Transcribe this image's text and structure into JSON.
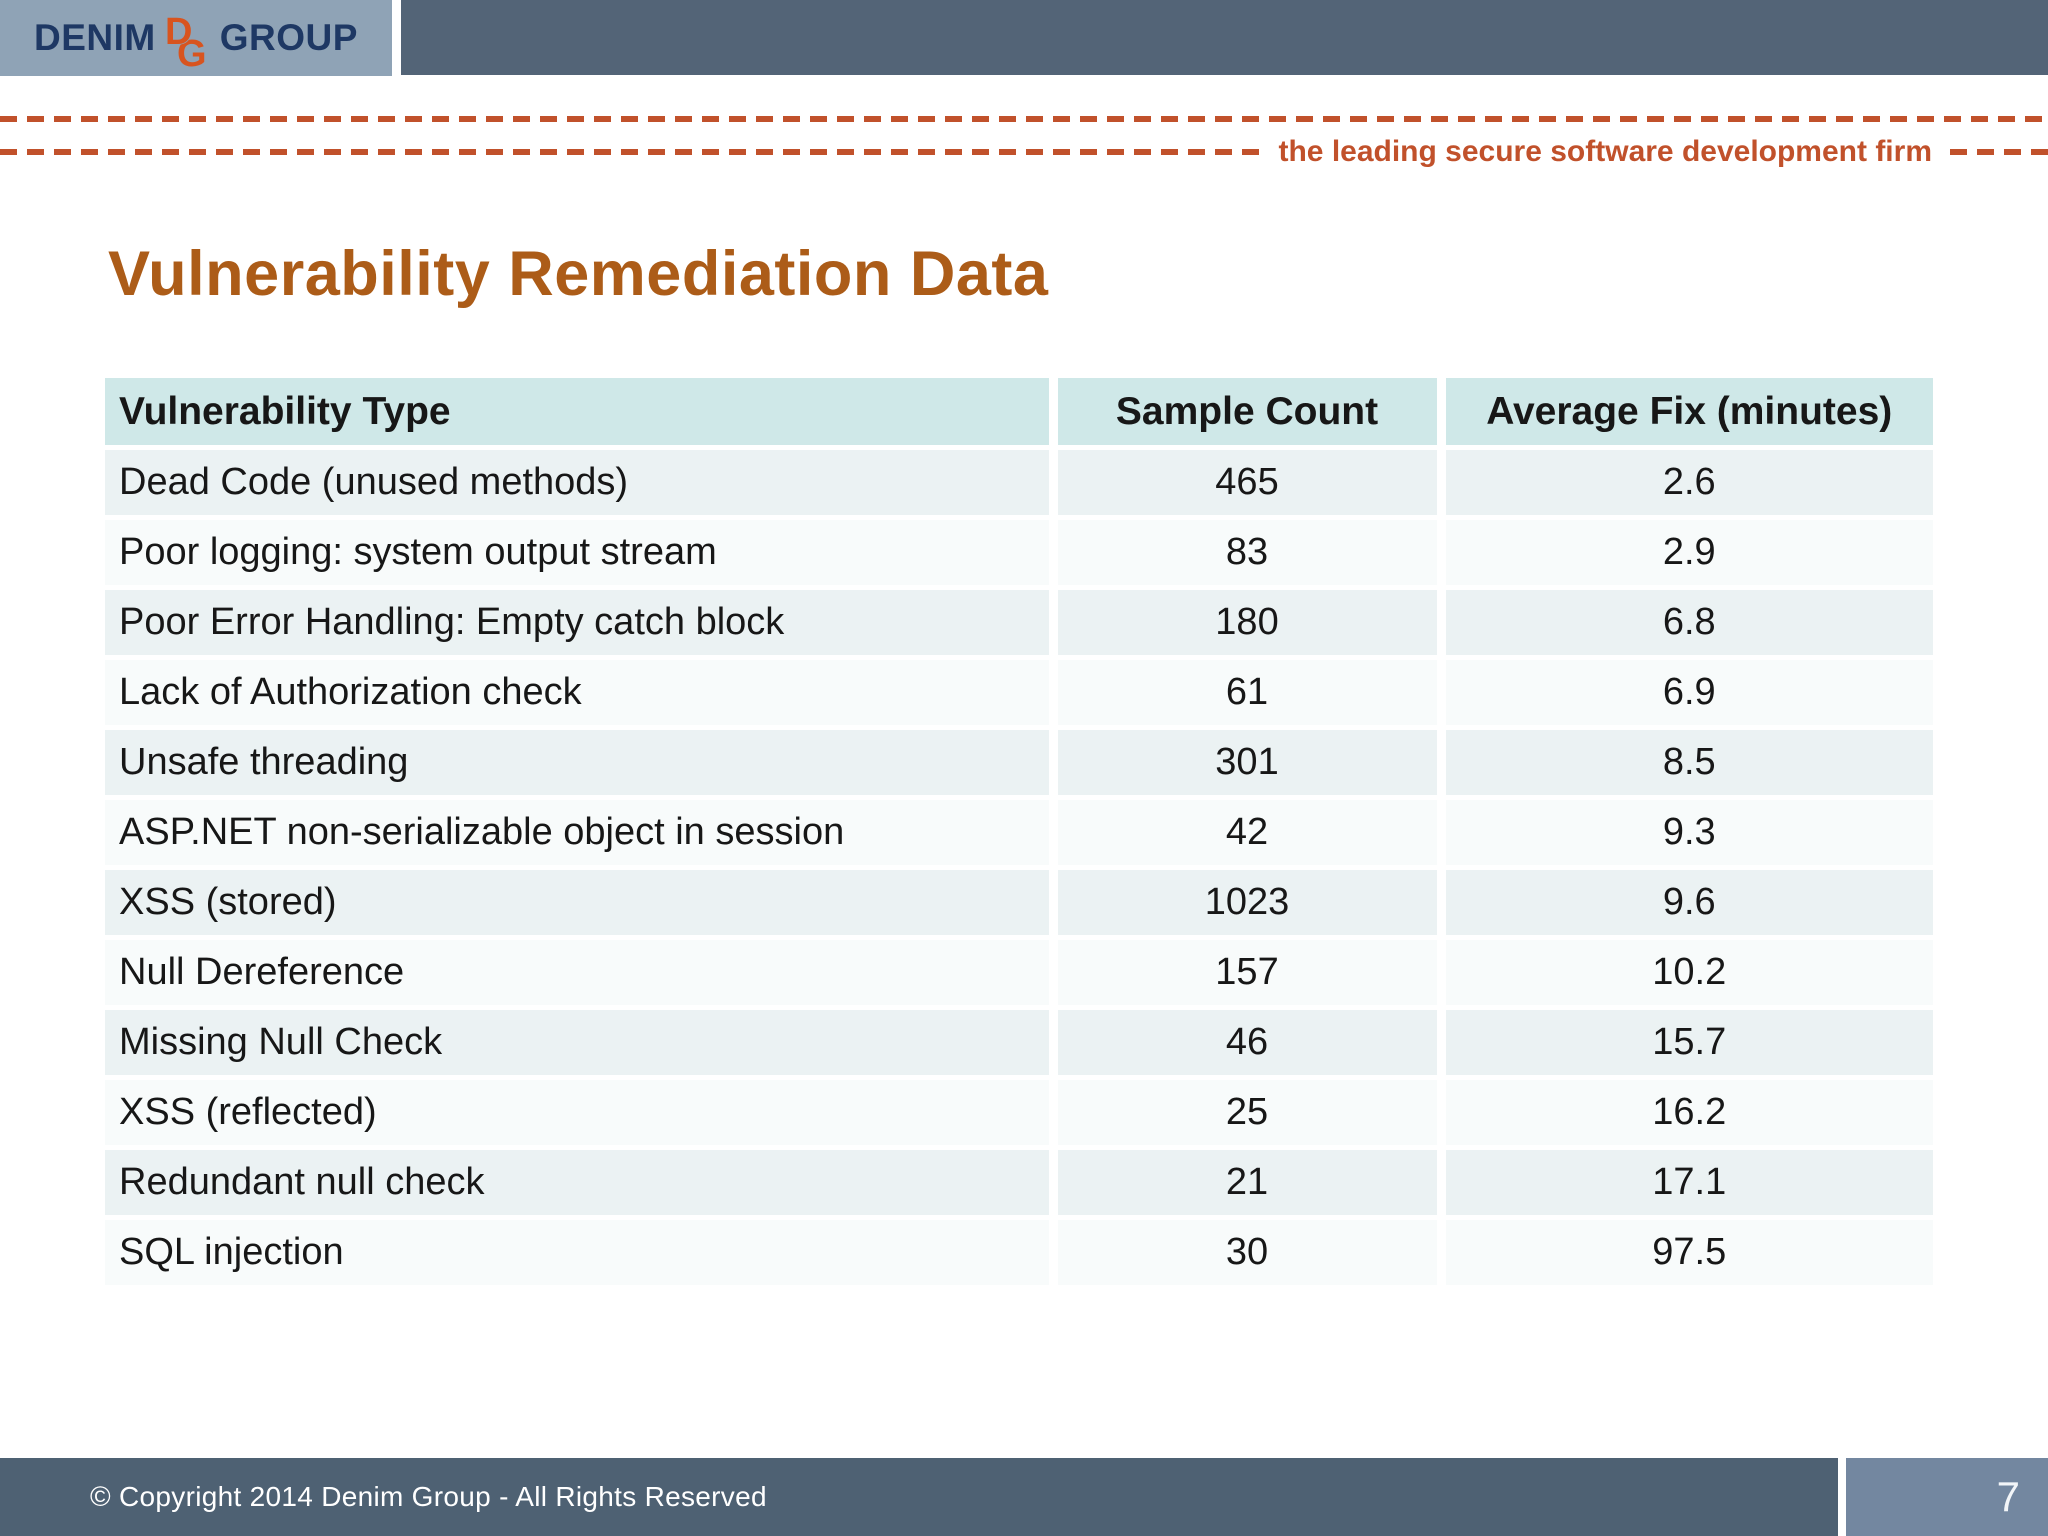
{
  "brand": {
    "logo_denim": "DENIM",
    "logo_group": "GROUP",
    "monogram_d": "D",
    "monogram_g": "G",
    "tagline": "the leading secure software development firm"
  },
  "slide": {
    "title": "Vulnerability Remediation Data",
    "copyright": "© Copyright 2014  Denim Group - All Rights Reserved",
    "page_number": "7"
  },
  "table": {
    "headers": [
      "Vulnerability Type",
      "Sample Count",
      "Average Fix (minutes)"
    ],
    "rows": [
      [
        "Dead Code (unused methods)",
        "465",
        "2.6"
      ],
      [
        "Poor logging: system output stream",
        "83",
        "2.9"
      ],
      [
        "Poor Error Handling: Empty catch block",
        "180",
        "6.8"
      ],
      [
        "Lack of Authorization check",
        "61",
        "6.9"
      ],
      [
        "Unsafe threading",
        "301",
        "8.5"
      ],
      [
        "ASP.NET non-serializable object in session",
        "42",
        "9.3"
      ],
      [
        "XSS (stored)",
        "1023",
        "9.6"
      ],
      [
        "Null Dereference",
        "157",
        "10.2"
      ],
      [
        "Missing Null Check",
        "46",
        "15.7"
      ],
      [
        "XSS (reflected)",
        "25",
        "16.2"
      ],
      [
        "Redundant null check",
        "21",
        "17.1"
      ],
      [
        "SQL injection",
        "30",
        "97.5"
      ]
    ]
  },
  "colors": {
    "title_orange": "#ac5c18",
    "rule_orange": "#c1512b",
    "monogram_orange": "#d8541f",
    "logo_navy": "#1e3864",
    "logo_box_bg": "#8fa3b6",
    "top_bar_bg": "#536477",
    "table_header_bg": "#cfe8e8",
    "row_odd_bg": "#ebf2f3",
    "row_even_bg": "#f8fbfb",
    "footer_bar_bg": "#4e6173",
    "page_box_bg": "#7387a0"
  }
}
